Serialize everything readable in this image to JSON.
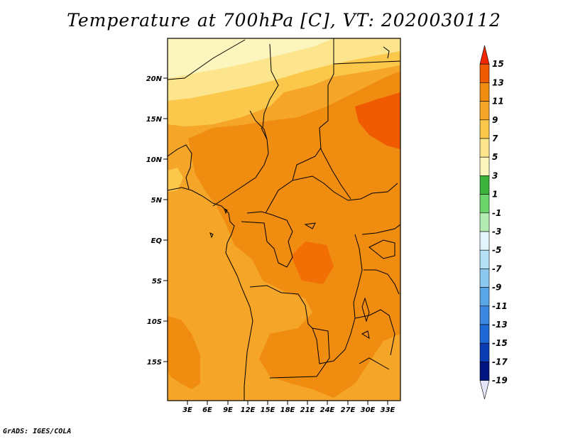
{
  "title": "Temperature at 700hPa [C], VT: 2020030112",
  "credit": "GrADS: IGES/COLA",
  "map": {
    "lat_labels": [
      "20N",
      "15N",
      "10N",
      "5N",
      "EQ",
      "5S",
      "10S",
      "15S"
    ],
    "lon_labels": [
      "3E",
      "6E",
      "9E",
      "12E",
      "15E",
      "18E",
      "21E",
      "24E",
      "27E",
      "30E",
      "33E"
    ],
    "region": "Central Africa",
    "lat_range": [
      -20,
      24
    ],
    "lon_range": [
      0,
      35
    ]
  },
  "colorbar": {
    "labels": [
      "15",
      "13",
      "11",
      "9",
      "7",
      "5",
      "3",
      "1",
      "-1",
      "-3",
      "-5",
      "-7",
      "-9",
      "-11",
      "-13",
      "-15",
      "-17",
      "-19"
    ],
    "colors": [
      "#f02800",
      "#f05a00",
      "#f08c0f",
      "#f5a628",
      "#fbc84b",
      "#fce58c",
      "#fdf5be",
      "#3cb43c",
      "#6bd56b",
      "#b4edb4",
      "#e2f5fc",
      "#b4e1f5",
      "#8cc8f0",
      "#5aa5e6",
      "#3c87e1",
      "#1f69d7",
      "#0a3cb4",
      "#001480",
      "#e6e6fa"
    ]
  }
}
